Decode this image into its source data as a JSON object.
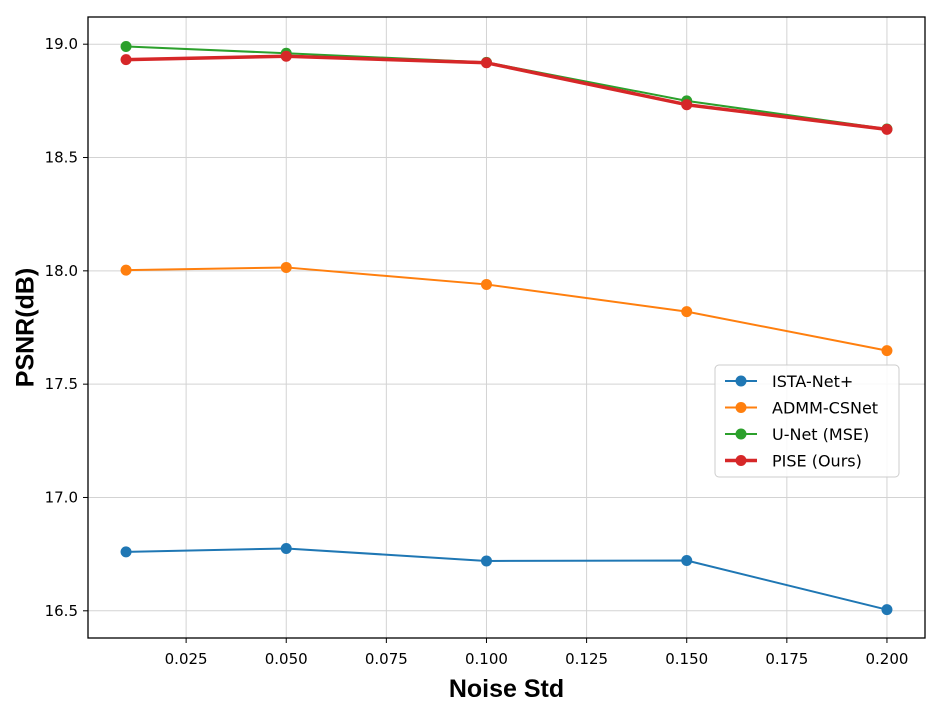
{
  "chart_data": {
    "type": "line",
    "title": "",
    "xlabel": "Noise Std",
    "ylabel": "PSNR(dB)",
    "x": [
      0.01,
      0.05,
      0.1,
      0.15,
      0.2
    ],
    "xlim": [
      0.0005,
      0.2095
    ],
    "ylim": [
      16.38,
      19.12
    ],
    "xticks": [
      0.025,
      0.05,
      0.075,
      0.1,
      0.125,
      0.15,
      0.175,
      0.2
    ],
    "xtick_labels": [
      "0.025",
      "0.050",
      "0.075",
      "0.100",
      "0.125",
      "0.150",
      "0.175",
      "0.200"
    ],
    "yticks": [
      16.5,
      17.0,
      17.5,
      18.0,
      18.5,
      19.0
    ],
    "ytick_labels": [
      "16.5",
      "17.0",
      "17.5",
      "18.0",
      "18.5",
      "19.0"
    ],
    "grid": true,
    "legend_position": "center-right",
    "series": [
      {
        "name": "ISTA-Net+",
        "color": "#1f77b4",
        "values": [
          16.76,
          16.775,
          16.72,
          16.722,
          16.505
        ]
      },
      {
        "name": "ADMM-CSNet",
        "color": "#ff7f0e",
        "values": [
          18.003,
          18.015,
          17.94,
          17.82,
          17.648
        ]
      },
      {
        "name": "U-Net (MSE)",
        "color": "#2ca02c",
        "values": [
          18.99,
          18.96,
          18.92,
          18.75,
          18.626
        ]
      },
      {
        "name": "PISE (Ours)",
        "color": "#d62728",
        "values": [
          18.932,
          18.947,
          18.918,
          18.733,
          18.624
        ]
      }
    ]
  }
}
